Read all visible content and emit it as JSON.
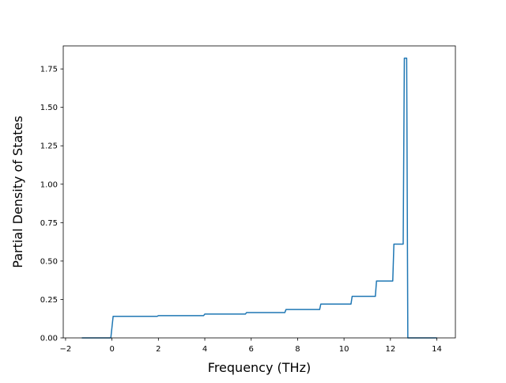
{
  "chart_data": {
    "type": "line",
    "title": "",
    "xlabel": "Frequency (THz)",
    "ylabel": "Partial Density of States",
    "xlim": [
      -2.1,
      14.8
    ],
    "ylim": [
      0,
      1.9
    ],
    "xticks": [
      -2,
      0,
      2,
      4,
      6,
      8,
      10,
      12,
      14
    ],
    "xtick_labels": [
      "−2",
      "0",
      "2",
      "4",
      "6",
      "8",
      "10",
      "12",
      "14"
    ],
    "yticks": [
      0,
      0.25,
      0.5,
      0.75,
      1.0,
      1.25,
      1.5,
      1.75
    ],
    "ytick_labels": [
      "0.00",
      "0.25",
      "0.50",
      "0.75",
      "1.00",
      "1.25",
      "1.50",
      "1.75"
    ],
    "grid": false,
    "legend": "none",
    "series": [
      {
        "color": "#1f77b4",
        "x": [
          -1.3,
          -0.05,
          0.05,
          1.95,
          2.0,
          3.95,
          4.0,
          5.75,
          5.8,
          7.45,
          7.5,
          8.95,
          9.0,
          10.3,
          10.35,
          11.35,
          11.4,
          12.1,
          12.15,
          12.55,
          12.6,
          12.62,
          12.65,
          12.7,
          12.75,
          14.0
        ],
        "y": [
          0,
          0,
          0.14,
          0.14,
          0.145,
          0.145,
          0.155,
          0.155,
          0.165,
          0.165,
          0.185,
          0.185,
          0.22,
          0.22,
          0.27,
          0.27,
          0.37,
          0.37,
          0.61,
          0.61,
          1.82,
          1.82,
          1.82,
          1.82,
          0,
          0
        ]
      }
    ]
  }
}
